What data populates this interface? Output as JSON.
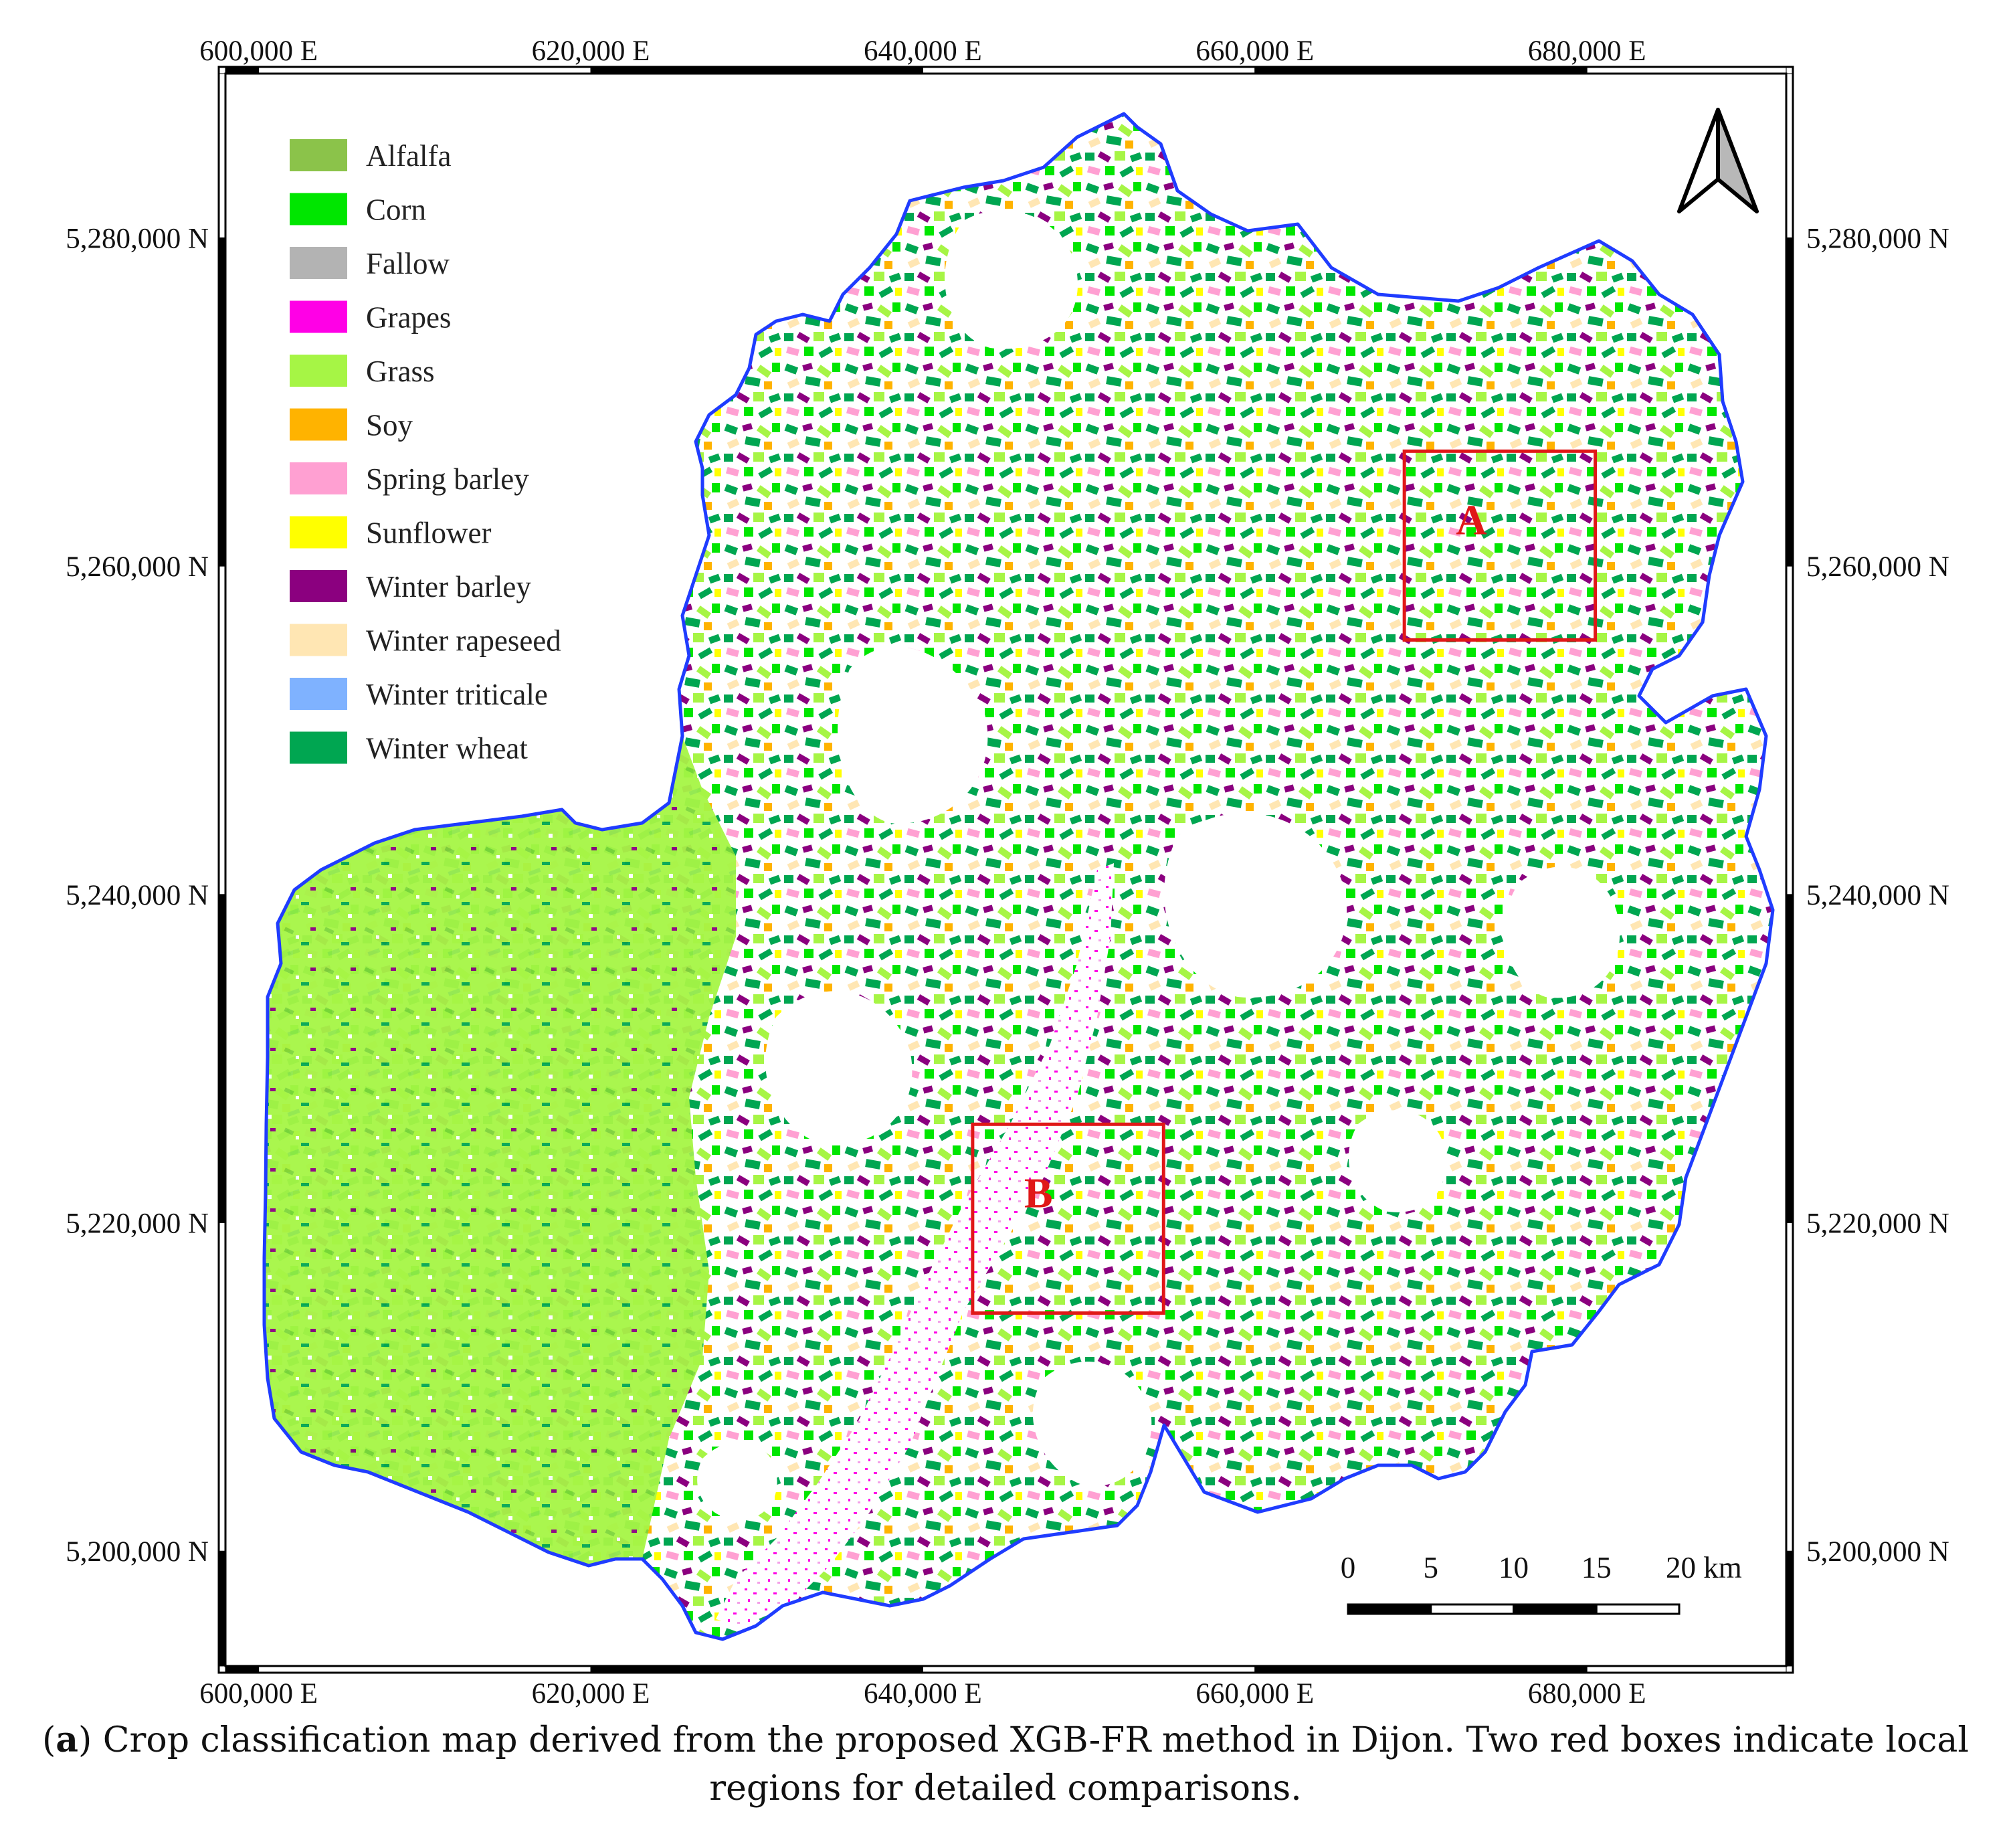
{
  "map": {
    "x_axis_labels": [
      "600,000 E",
      "620,000 E",
      "640,000 E",
      "660,000 E",
      "680,000 E"
    ],
    "y_axis_labels": [
      "5,280,000 N",
      "5,260,000 N",
      "5,240,000 N",
      "5,220,000 N",
      "5,200,000 N"
    ],
    "x_range_m": [
      598000,
      692000
    ],
    "y_range_m": [
      5193000,
      5290000
    ],
    "boundary_color": "#1f3cff",
    "north_arrow": "north-arrow-icon",
    "legend": [
      {
        "label": "Alfalfa",
        "color": "#8bc34a"
      },
      {
        "label": "Corn",
        "color": "#00e600"
      },
      {
        "label": "Fallow",
        "color": "#b3b3b3"
      },
      {
        "label": "Grapes",
        "color": "#ff00e6"
      },
      {
        "label": "Grass",
        "color": "#a6f545"
      },
      {
        "label": "Soy",
        "color": "#ffb300"
      },
      {
        "label": "Spring barley",
        "color": "#ffa0d2"
      },
      {
        "label": "Sunflower",
        "color": "#ffff00"
      },
      {
        "label": "Winter barley",
        "color": "#8b007f"
      },
      {
        "label": "Winter rapeseed",
        "color": "#ffe6b3"
      },
      {
        "label": "Winter triticale",
        "color": "#7fb2ff"
      },
      {
        "label": "Winter wheat",
        "color": "#00a651"
      }
    ],
    "regions": [
      {
        "label": "A",
        "x_range_m": [
          669000,
          680500
        ],
        "y_range_m": [
          5255500,
          5267000
        ]
      },
      {
        "label": "B",
        "x_range_m": [
          643000,
          654500
        ],
        "y_range_m": [
          5214500,
          5226000
        ]
      }
    ],
    "scale_bar": {
      "labels": [
        "0",
        "5",
        "10",
        "15"
      ],
      "last_label": "20 km",
      "length_km": 20
    }
  },
  "caption": {
    "prefix": "(",
    "letter": "a",
    "rest": ") Crop classification map derived from the proposed XGB-FR method in Dijon. Two red boxes indicate local regions for detailed comparisons."
  }
}
